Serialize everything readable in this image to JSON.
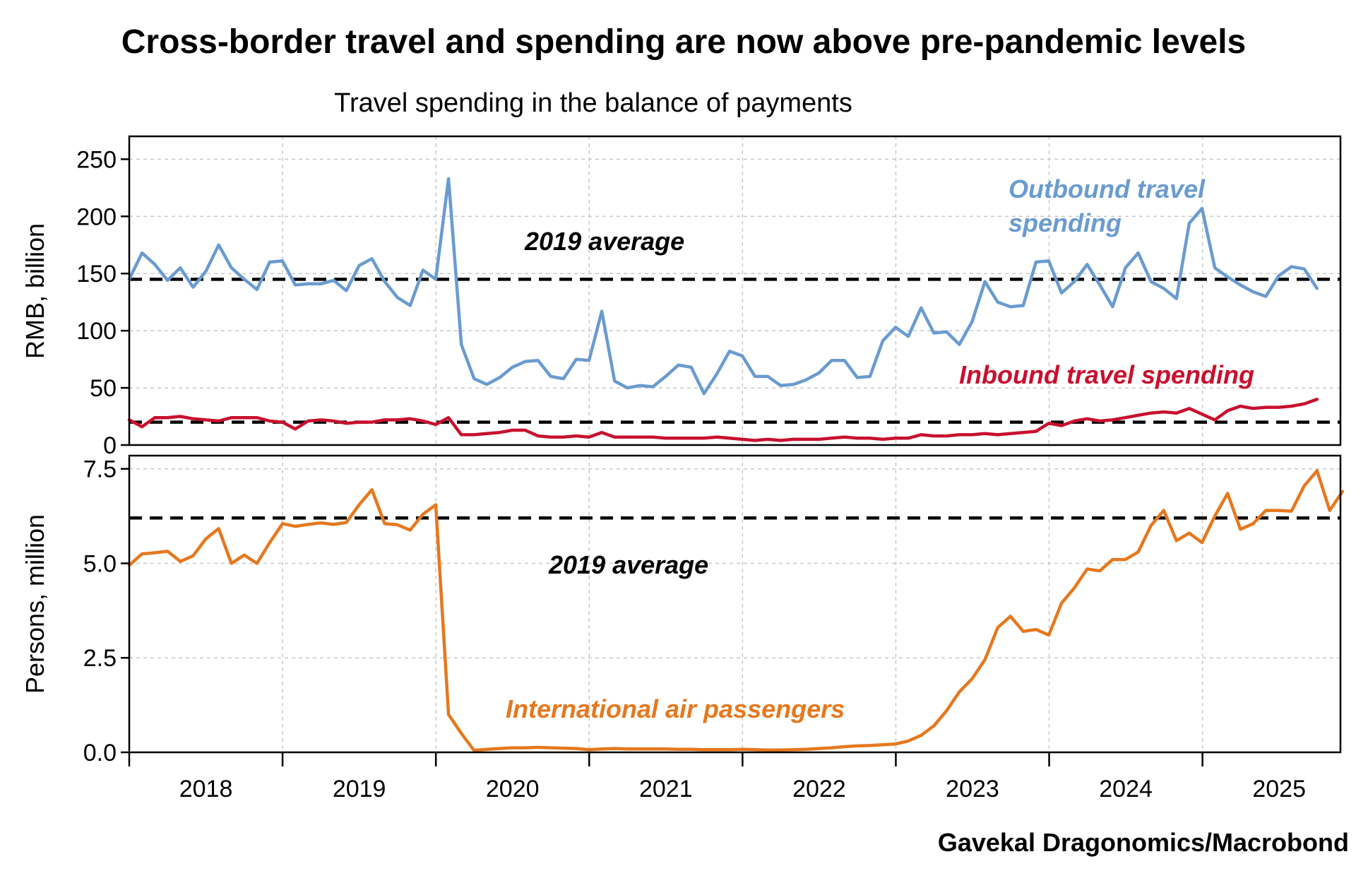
{
  "title": "Cross-border travel and spending are now above pre-pandemic levels",
  "subtitle": "Travel spending in the balance of payments",
  "source": "Gavekal Dragonomics/Macrobond",
  "colors": {
    "outbound": "#6a9bcf",
    "inbound": "#c8102e",
    "passengers": "#e5781f",
    "reference": "#000000",
    "grid": "#c8c8c8"
  },
  "chart_data": [
    {
      "type": "line",
      "ylabel": "RMB, billion",
      "ylim": [
        0,
        270
      ],
      "yticks": [
        0,
        50,
        100,
        150,
        200,
        250
      ],
      "xlim": [
        2018.0,
        2025.9
      ],
      "xticks": [
        "2018",
        "2019",
        "2020",
        "2021",
        "2022",
        "2023",
        "2024",
        "2025"
      ],
      "grid": true,
      "reference_lines": [
        {
          "label": "2019 average",
          "value": 145
        },
        {
          "value": 20
        }
      ],
      "series": [
        {
          "name": "Outbound travel spending",
          "label": "Outbound travel\nspending",
          "color_key": "outbound",
          "start": 2018.0,
          "step": 0.0833,
          "values": [
            145,
            168,
            158,
            144,
            155,
            138,
            152,
            175,
            155,
            145,
            136,
            160,
            161,
            140,
            141,
            141,
            144,
            135,
            157,
            163,
            143,
            129,
            122,
            153,
            145,
            233,
            88,
            58,
            53,
            59,
            68,
            73,
            74,
            60,
            58,
            75,
            74,
            117,
            56,
            50,
            52,
            51,
            60,
            70,
            68,
            45,
            62,
            82,
            78,
            60,
            60,
            52,
            53,
            57,
            63,
            74,
            74,
            59,
            60,
            91,
            103,
            95,
            120,
            98,
            99,
            88,
            108,
            143,
            125,
            121,
            122,
            160,
            161,
            133,
            143,
            158,
            140,
            121,
            155,
            168,
            143,
            137,
            128,
            194,
            207,
            155,
            147,
            140,
            134,
            130,
            148,
            156,
            154,
            137
          ]
        },
        {
          "name": "Inbound travel spending",
          "label": "Inbound travel spending",
          "color_key": "inbound",
          "start": 2018.0,
          "step": 0.0833,
          "values": [
            22,
            16,
            24,
            24,
            25,
            23,
            22,
            21,
            24,
            24,
            24,
            21,
            20,
            14,
            21,
            22,
            21,
            19,
            20,
            20,
            22,
            22,
            23,
            21,
            18,
            24,
            9,
            9,
            10,
            11,
            13,
            13,
            8,
            7,
            7,
            8,
            7,
            11,
            7,
            7,
            7,
            7,
            6,
            6,
            6,
            6,
            7,
            6,
            5,
            4,
            5,
            4,
            5,
            5,
            5,
            6,
            7,
            6,
            6,
            5,
            6,
            6,
            9,
            8,
            8,
            9,
            9,
            10,
            9,
            10,
            11,
            12,
            19,
            17,
            21,
            23,
            21,
            22,
            24,
            26,
            28,
            29,
            28,
            32,
            27,
            22,
            30,
            34,
            32,
            33,
            33,
            34,
            36,
            40
          ]
        }
      ]
    },
    {
      "type": "line",
      "ylabel": "Persons, million",
      "ylim": [
        0,
        7.85
      ],
      "yticks": [
        "0.0",
        "2.5",
        "5.0",
        "7.5"
      ],
      "xlim": [
        2018.0,
        2025.9
      ],
      "grid": true,
      "reference_lines": [
        {
          "label": "2019 average",
          "value": 6.2
        }
      ],
      "series": [
        {
          "name": "International air passengers",
          "label": "International air passengers",
          "color_key": "passengers",
          "start": 2018.0,
          "step": 0.0833,
          "values": [
            4.95,
            5.25,
            5.28,
            5.32,
            5.05,
            5.2,
            5.65,
            5.92,
            5.0,
            5.22,
            5.0,
            5.55,
            6.05,
            5.98,
            6.03,
            6.07,
            6.03,
            6.08,
            6.55,
            6.95,
            6.05,
            6.02,
            5.88,
            6.3,
            6.55,
            1.0,
            0.5,
            0.05,
            0.08,
            0.1,
            0.12,
            0.12,
            0.13,
            0.12,
            0.11,
            0.1,
            0.07,
            0.09,
            0.1,
            0.09,
            0.09,
            0.09,
            0.09,
            0.08,
            0.08,
            0.07,
            0.07,
            0.07,
            0.08,
            0.07,
            0.06,
            0.06,
            0.07,
            0.08,
            0.1,
            0.12,
            0.15,
            0.17,
            0.18,
            0.2,
            0.22,
            0.3,
            0.45,
            0.7,
            1.1,
            1.6,
            1.95,
            2.45,
            3.3,
            3.6,
            3.2,
            3.25,
            3.1,
            3.95,
            4.35,
            4.85,
            4.8,
            5.1,
            5.1,
            5.3,
            6.0,
            6.4,
            5.6,
            5.8,
            5.55,
            6.25,
            6.85,
            5.9,
            6.05,
            6.4,
            6.4,
            6.38,
            7.05,
            7.45,
            6.4,
            6.9
          ]
        }
      ]
    }
  ]
}
